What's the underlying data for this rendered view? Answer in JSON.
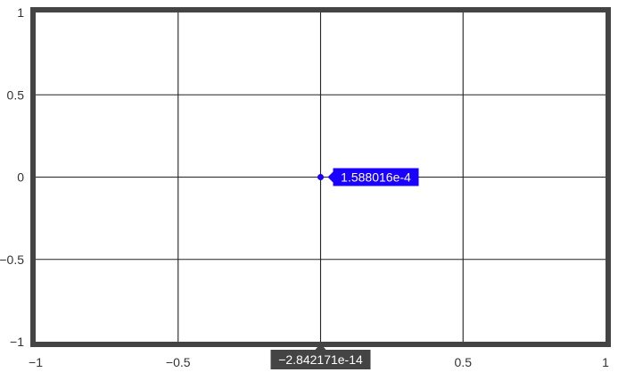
{
  "chart_data": {
    "type": "scatter",
    "xlim": [
      -1,
      1
    ],
    "ylim": [
      -1,
      1
    ],
    "x_ticks": [
      -1,
      -0.5,
      0,
      0.5,
      1
    ],
    "x_tick_labels": [
      "−1",
      "−0.5",
      "",
      "0.5",
      "1"
    ],
    "y_ticks": [
      -1,
      -0.5,
      0,
      0.5,
      1
    ],
    "y_tick_labels": [
      "−1",
      "−0.5",
      "0",
      "0.5",
      "1"
    ],
    "grid": true,
    "points": [
      {
        "x": -2.842171e-14,
        "y": 0.0001588016
      }
    ],
    "hover": {
      "x_label": "−2.842171e-14",
      "y_label": "1.588016e-4"
    },
    "colors": {
      "frame": "#444444",
      "grid": "#222222",
      "point": "#1a00ff",
      "y_hover_bg": "#1a00ff",
      "x_hover_bg": "#444444",
      "hover_text": "#ffffff",
      "tick_text": "#333333"
    }
  }
}
